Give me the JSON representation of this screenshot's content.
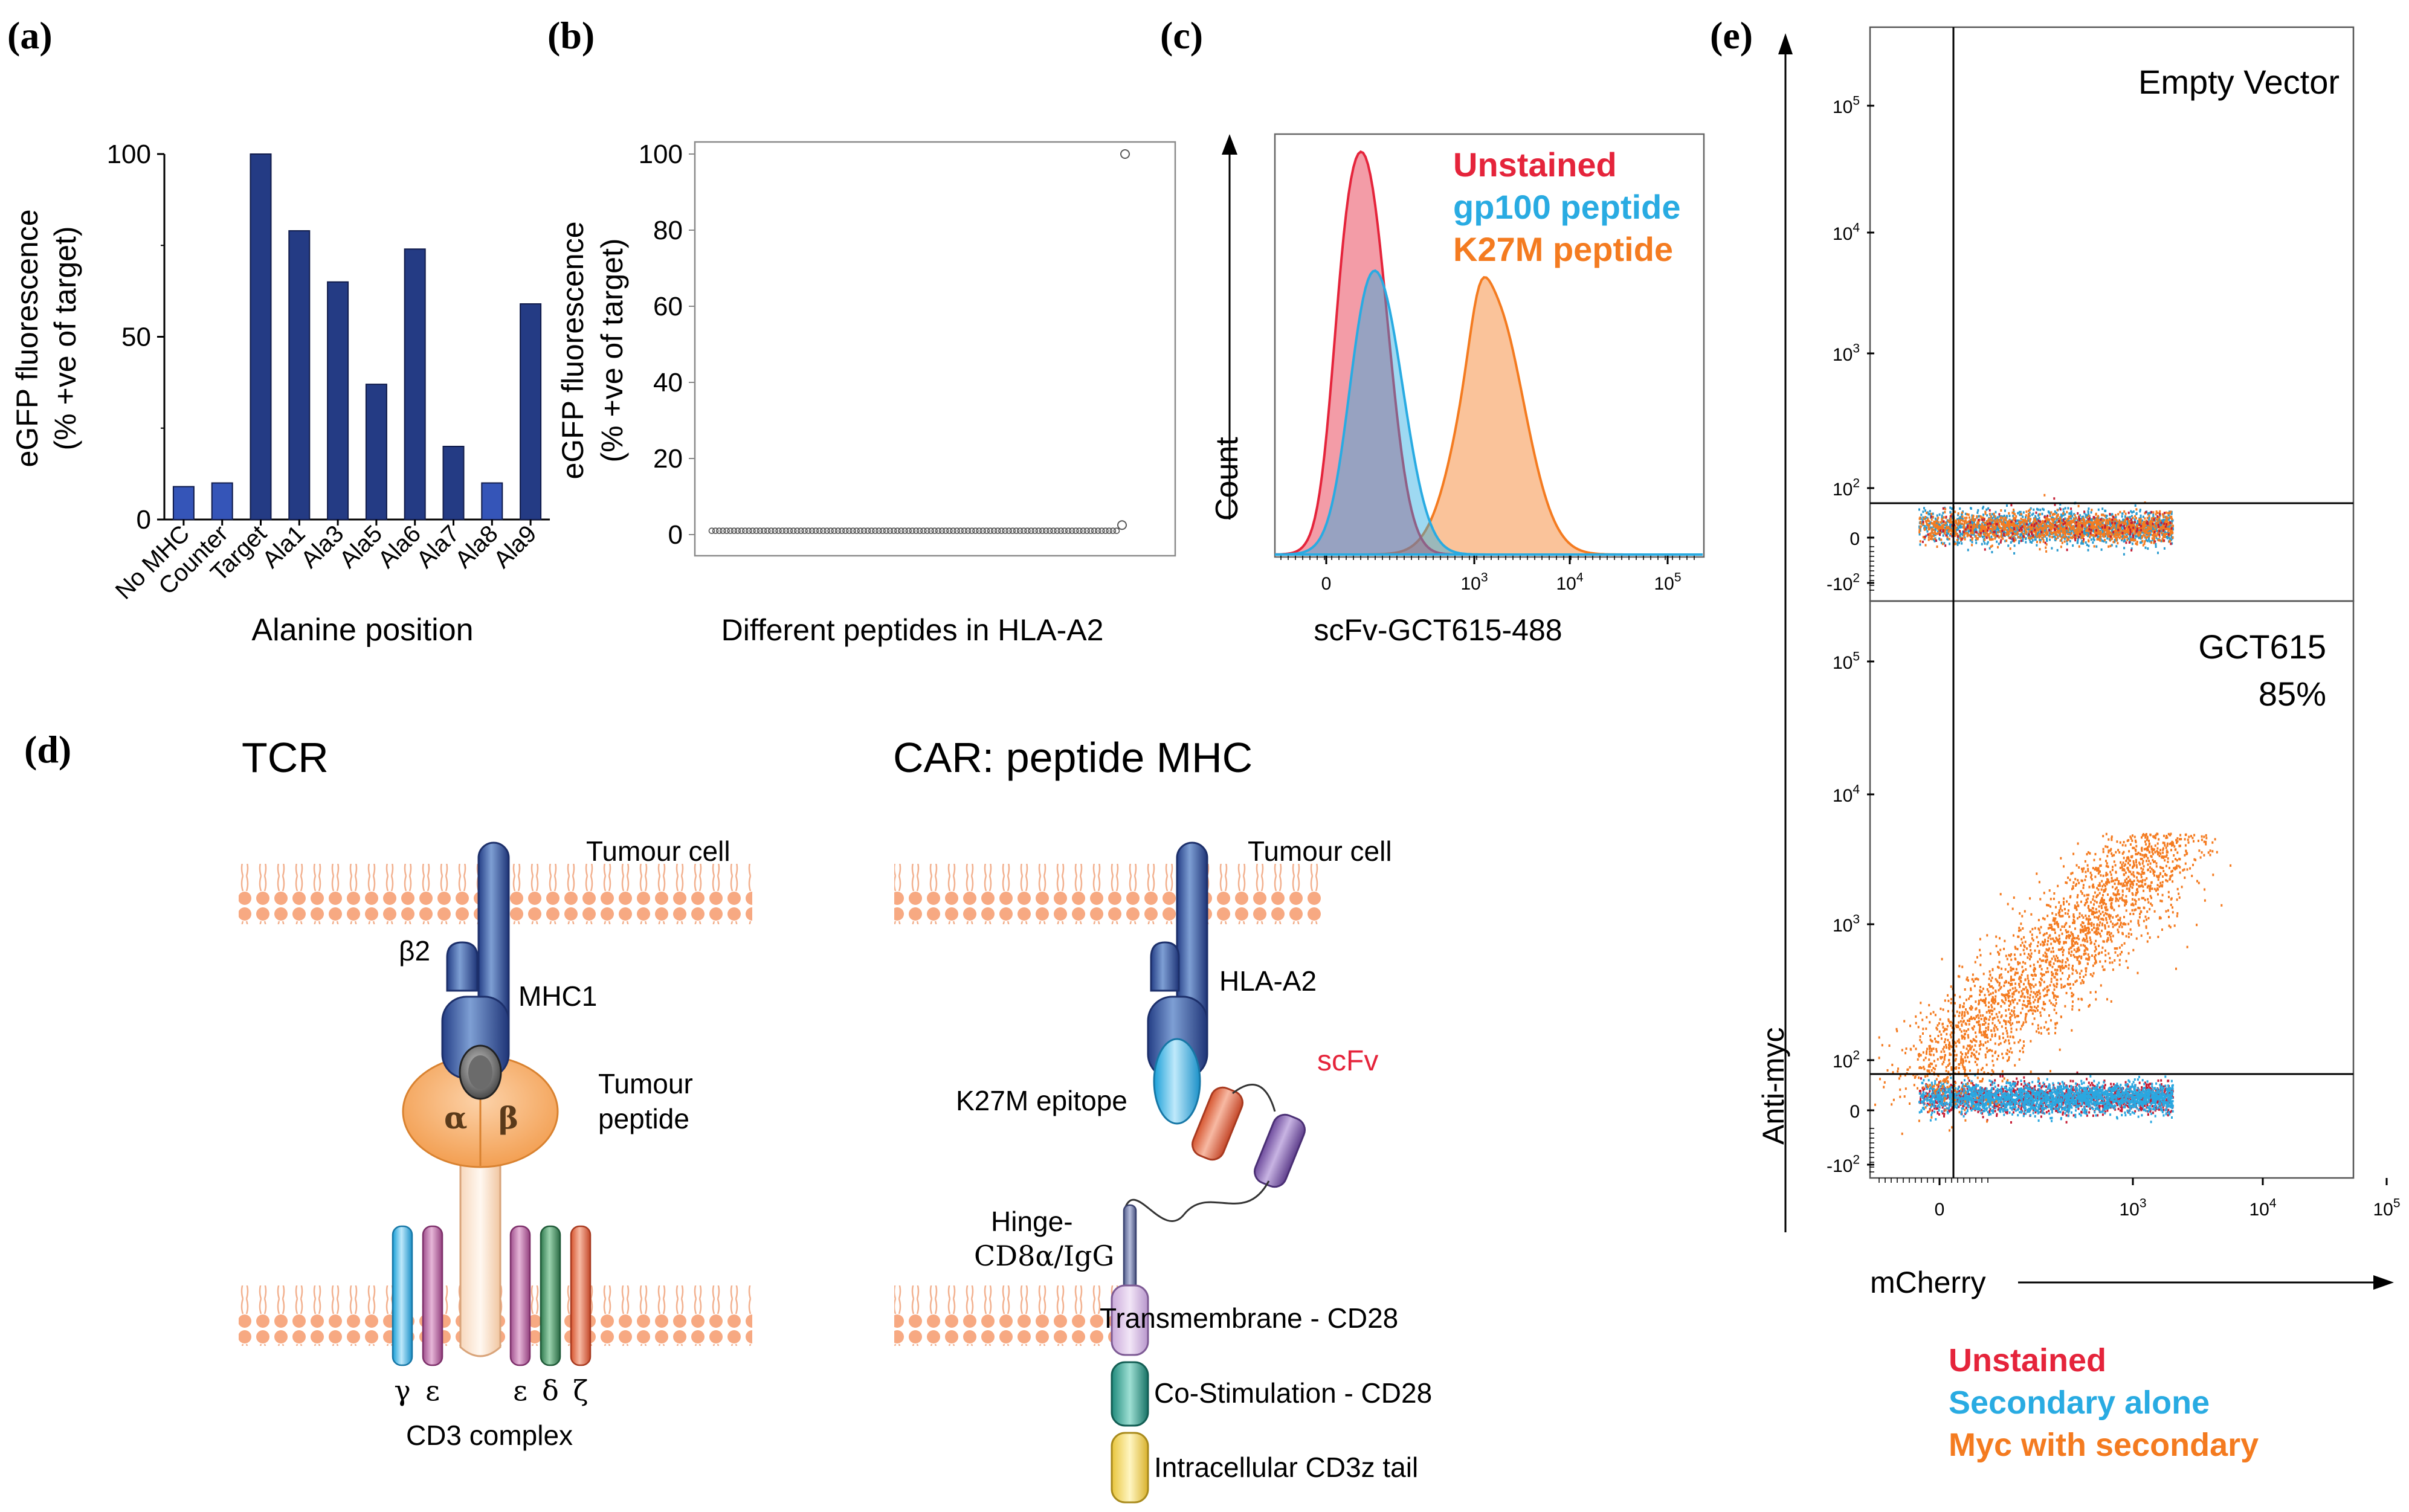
{
  "panels": {
    "a": "(a)",
    "b": "(b)",
    "c": "(c)",
    "d": "(d)",
    "e": "(e)"
  },
  "colors": {
    "navy": "#243b84",
    "red": "#e5243b",
    "blue": "#29abe2",
    "orange": "#f47b20"
  },
  "chart_data": [
    {
      "type": "bar",
      "panel": "a",
      "categories": [
        "No MHC",
        "Counter",
        "Target",
        "Ala1",
        "Ala3",
        "Ala5",
        "Ala6",
        "Ala7",
        "Ala8",
        "Ala9"
      ],
      "values": [
        9,
        10,
        100,
        79,
        65,
        37,
        74,
        20,
        10,
        59
      ],
      "highlighted": [
        "No MHC",
        "Counter",
        "Ala8"
      ],
      "ylabel_line1": "eGFP fluorescence",
      "ylabel_line2": "(% +ve of target)",
      "xlabel": "Alanine position",
      "ylim": [
        0,
        100
      ],
      "yticks": [
        0,
        50,
        100
      ]
    },
    {
      "type": "scatter",
      "panel": "b",
      "n_points": 110,
      "baseline_value": 1,
      "outlier_value": 100,
      "ylabel_line1": "eGFP  fluorescence",
      "ylabel_line2": "(% +ve of target)",
      "xlabel": "Different peptides in HLA-A2",
      "ylim": [
        0,
        100
      ],
      "yticks": [
        0,
        20,
        40,
        60,
        80,
        100
      ]
    },
    {
      "type": "area",
      "panel": "c",
      "ylabel": "Count",
      "xlabel": "scFv-GCT615-488",
      "xticks": [
        {
          "base": "0",
          "exp": ""
        },
        {
          "base": "10",
          "exp": "3"
        },
        {
          "base": "10",
          "exp": "4"
        },
        {
          "base": "10",
          "exp": "5"
        }
      ],
      "series": [
        {
          "name": "Unstained",
          "peak_log10": 2.3
        },
        {
          "name": "gp100 peptide",
          "peak_log10": 2.45
        },
        {
          "name": "K27M peptide",
          "peak_log10": 3.2
        }
      ]
    },
    {
      "type": "scatter",
      "panel": "e",
      "xlabel": "mCherry",
      "ylabel": "Anti-myc",
      "yticks": [
        {
          "base": "10",
          "exp": "5"
        },
        {
          "base": "10",
          "exp": "4"
        },
        {
          "base": "10",
          "exp": "3"
        },
        {
          "base": "10",
          "exp": "2"
        },
        {
          "base": "0",
          "exp": ""
        },
        {
          "base": "-10",
          "exp": "2"
        }
      ],
      "xticks": [
        {
          "base": "0",
          "exp": ""
        },
        {
          "base": "10",
          "exp": "3"
        },
        {
          "base": "10",
          "exp": "4"
        },
        {
          "base": "10",
          "exp": "5"
        }
      ],
      "subplots": [
        {
          "title": "Empty Vector",
          "percent": ""
        },
        {
          "title": "GCT615",
          "percent": "85%"
        }
      ],
      "legend": [
        "Unstained",
        "Secondary alone",
        "Myc with secondary"
      ]
    }
  ],
  "diagram": {
    "tcr": {
      "title": "TCR",
      "tumour_cell": "Tumour cell",
      "beta2": "β2",
      "mhc": "MHC1",
      "peptide": "Tumour\npeptide",
      "alpha": "α",
      "beta": "β",
      "chains": [
        "γ",
        "ε",
        "ε",
        "δ",
        "ζ"
      ],
      "cd3": "CD3 complex"
    },
    "car": {
      "title": "CAR: peptide MHC",
      "tumour_cell": "Tumour cell",
      "hla": "HLA-A2",
      "epitope": "K27M epitope",
      "scfv": "scFv",
      "hinge": "Hinge-\nCD8α/IgG",
      "transmembrane": "Transmembrane - CD28",
      "costim": "Co-Stimulation - CD28",
      "tail": "Intracellular CD3z tail"
    }
  }
}
